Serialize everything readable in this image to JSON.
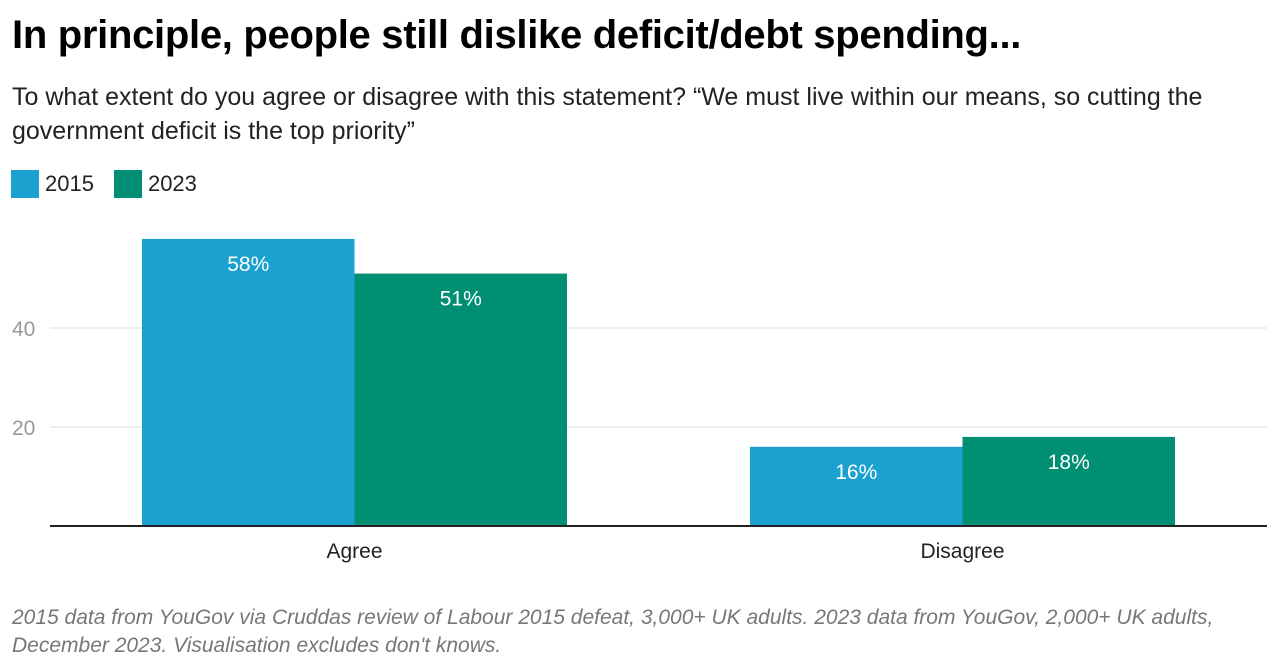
{
  "title": "In principle, people still dislike deficit/debt spending...",
  "subtitle": "To what extent do you agree or disagree with this statement? “We must live within our means, so cutting the government deficit is the top priority”",
  "footer": "2015 data from YouGov via Cruddas review of Labour 2015 defeat, 3,000+ UK adults. 2023 data from YouGov, 2,000+ UK adults, December 2023. Visualisation excludes don't knows.",
  "chart_data": {
    "type": "bar",
    "categories": [
      "Agree",
      "Disagree"
    ],
    "series": [
      {
        "name": "2015",
        "values": [
          58,
          16
        ],
        "labels": [
          "58%",
          "16%"
        ],
        "color": "#1aa1cf"
      },
      {
        "name": "2023",
        "values": [
          51,
          18
        ],
        "labels": [
          "51%",
          "18%"
        ],
        "color": "#008f73"
      }
    ],
    "yticks": [
      20,
      40
    ],
    "ylim": [
      0,
      58
    ],
    "grid": true,
    "legend": "top-left"
  }
}
